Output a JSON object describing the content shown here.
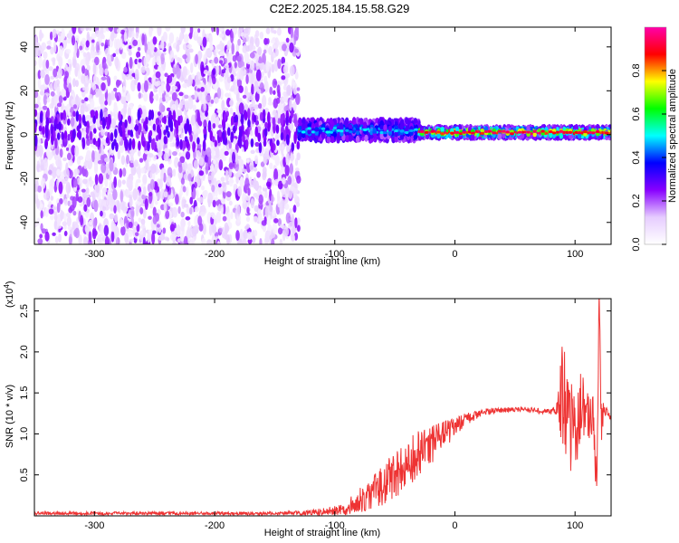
{
  "figure": {
    "title": "C2E2.2025.184.15.58.G29"
  },
  "chart_data": [
    {
      "type": "heatmap",
      "xlabel": "Height of straight line (km)",
      "ylabel": "Frequency (Hz)",
      "xlim": [
        -350,
        130
      ],
      "ylim": [
        -50,
        49
      ],
      "xticks": [
        -300,
        -200,
        -100,
        0,
        100
      ],
      "yticks": [
        -40,
        -20,
        0,
        20,
        40
      ],
      "colorbar": {
        "label": "Normalized spectral amplitude",
        "range": [
          0,
          1
        ],
        "ticks": [
          0.0,
          0.2,
          0.4,
          0.6,
          0.8
        ],
        "colors": [
          "#ffffff",
          "#e6ccff",
          "#8800ff",
          "#0000ff",
          "#00ffff",
          "#00ff00",
          "#ffff00",
          "#ff0000",
          "#ff00aa"
        ]
      },
      "features": [
        {
          "x_from": -350,
          "x_to": -130,
          "description": "noise",
          "amplitude": 0.1
        },
        {
          "x_from": -130,
          "x_to": -30,
          "center_hz": 2,
          "spread_hz": 10,
          "amplitude": 0.45
        },
        {
          "x_from": -30,
          "x_to": 130,
          "center_hz": 1,
          "spread_hz": 5,
          "amplitude": 0.9
        }
      ]
    },
    {
      "type": "line",
      "xlabel": "Height of straight line (km)",
      "ylabel": "SNR (10 * v/v)",
      "y_multiplier": "(x10",
      "y_multiplier_exp": "4",
      "xlim": [
        -350,
        130
      ],
      "ylim": [
        0,
        2.65
      ],
      "xticks": [
        -300,
        -200,
        -100,
        0,
        100
      ],
      "yticks": [
        0.5,
        1.0,
        1.5,
        2.0,
        2.5
      ],
      "ytick_labels": [
        "0.5",
        "1.0",
        "1.5",
        "2.0",
        "2.5"
      ],
      "series": [
        {
          "color": "#ee3333",
          "x": [
            -350,
            -300,
            -250,
            -200,
            -150,
            -120,
            -100,
            -90,
            -80,
            -70,
            -60,
            -50,
            -40,
            -30,
            -20,
            -10,
            0,
            10,
            20,
            30,
            40,
            50,
            60,
            70,
            80,
            85,
            90,
            95,
            100,
            105,
            110,
            115,
            118,
            120,
            122,
            125,
            130
          ],
          "y": [
            0.03,
            0.03,
            0.03,
            0.03,
            0.03,
            0.04,
            0.06,
            0.1,
            0.18,
            0.28,
            0.38,
            0.5,
            0.62,
            0.74,
            0.85,
            0.98,
            1.08,
            1.18,
            1.25,
            1.28,
            1.29,
            1.3,
            1.3,
            1.28,
            1.27,
            1.3,
            1.5,
            1.2,
            0.9,
            1.4,
            1.25,
            1.2,
            0.4,
            2.6,
            1.1,
            1.3,
            1.18
          ],
          "noise_amplitude": [
            0.02,
            0.02,
            0.02,
            0.02,
            0.02,
            0.03,
            0.06,
            0.1,
            0.15,
            0.2,
            0.25,
            0.3,
            0.32,
            0.3,
            0.25,
            0.18,
            0.12,
            0.08,
            0.05,
            0.04,
            0.03,
            0.03,
            0.03,
            0.03,
            0.03,
            0.1,
            0.7,
            0.6,
            0.5,
            0.4,
            0.3,
            0.3,
            0.3,
            0.2,
            0.3,
            0.1,
            0.02
          ]
        }
      ]
    }
  ]
}
